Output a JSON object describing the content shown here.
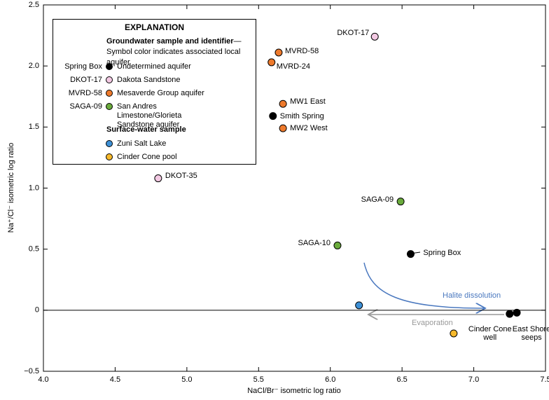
{
  "chart_data": {
    "type": "scatter",
    "xlabel": "NaCl/Br⁻ isometric log ratio",
    "ylabel": "Na⁺/Cl⁻ isometric log ratio",
    "xlim": [
      4,
      7.5
    ],
    "ylim": [
      -0.5,
      2.5
    ],
    "xticks": [
      {
        "value": 4,
        "label": "4.0"
      },
      4.5,
      {
        "value": 5,
        "label": "5.0"
      },
      5.5,
      {
        "value": 6,
        "label": "6.0"
      },
      6.5,
      {
        "value": 7,
        "label": "7.0"
      },
      7.5
    ],
    "yticks": [
      {
        "value": -0.5,
        "label": "−0.5"
      },
      0,
      0.5,
      {
        "value": 1,
        "label": "1.0"
      },
      1.5,
      {
        "value": 2,
        "label": "2.0"
      },
      2.5
    ],
    "legend": {
      "title": "EXPLANATION",
      "groundwater_heading": "Groundwater sample and identifier",
      "groundwater_note": "—Symbol color indicates associated local aquifer",
      "surface_heading": "Surface-water sample"
    },
    "annotations": [
      "Halite dissolution",
      "Evaporation"
    ],
    "series": [
      {
        "name": "Undetermined aquifer",
        "group": "groundwater",
        "legend_id": "Spring Box",
        "color": "#000000",
        "x": [
          5.6,
          6.56,
          7.25,
          7.3
        ],
        "values": [
          1.59,
          0.46,
          -0.03,
          -0.02
        ],
        "labels": [
          "Smith Spring",
          "Spring Box",
          "Cinder Cone well",
          "East Shore seeps"
        ]
      },
      {
        "name": "Dakota Sandstone",
        "group": "groundwater",
        "legend_id": "DKOT-17",
        "color": "#f3c9e3",
        "x": [
          6.31,
          4.8
        ],
        "values": [
          2.24,
          1.08
        ],
        "labels": [
          "DKOT-17",
          "DKOT-35"
        ]
      },
      {
        "name": "Mesaverde Group aquifer",
        "group": "groundwater",
        "legend_id": "MVRD-58",
        "color": "#ee7a2c",
        "x": [
          5.64,
          5.59,
          5.67,
          5.67
        ],
        "values": [
          2.11,
          2.03,
          1.69,
          1.49
        ],
        "labels": [
          "MVRD-58",
          "MVRD-24",
          "MW1 East",
          "MW2 West"
        ]
      },
      {
        "name": "San Andres Limestone/Glorieta Sandstone aquifer",
        "group": "groundwater",
        "legend_id": "SAGA-09",
        "color": "#6aab3c",
        "x": [
          6.49,
          6.05
        ],
        "values": [
          0.89,
          0.53
        ],
        "labels": [
          "SAGA-09",
          "SAGA-10"
        ]
      },
      {
        "name": "Zuni Salt Lake",
        "group": "surface",
        "color": "#3d90d6",
        "x": [
          6.2
        ],
        "values": [
          0.04
        ]
      },
      {
        "name": "Cinder Cone pool",
        "group": "surface",
        "color": "#f6b92c",
        "x": [
          6.86
        ],
        "values": [
          -0.19
        ]
      }
    ]
  }
}
